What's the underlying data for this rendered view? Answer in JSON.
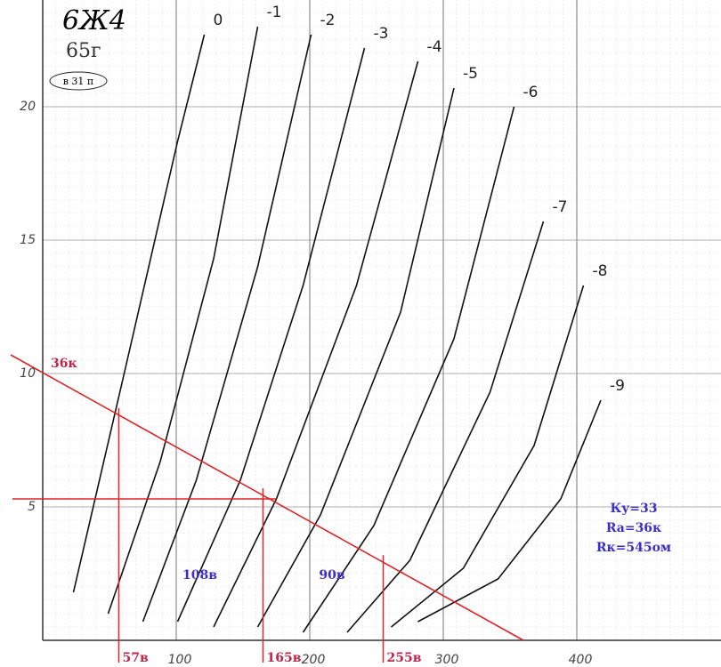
{
  "chart_data": {
    "type": "line",
    "title": "6Ж4",
    "subtitle": "65г",
    "badge": "в 31 п",
    "xlim": [
      -32,
      508
    ],
    "ylim": [
      -1,
      24
    ],
    "xticks": [
      100,
      200,
      300,
      400
    ],
    "yticks": [
      5,
      10,
      15,
      20
    ],
    "grid": true,
    "series": [
      {
        "name": "0",
        "color": "#111111",
        "x": [
          23,
          61,
          101,
          121
        ],
        "values": [
          1.8,
          10,
          18.7,
          22.7
        ]
      },
      {
        "name": "-1",
        "color": "#111111",
        "x": [
          49,
          88,
          128,
          161
        ],
        "values": [
          1,
          6.7,
          14.3,
          23
        ]
      },
      {
        "name": "-2",
        "color": "#111111",
        "x": [
          75,
          115,
          161,
          201
        ],
        "values": [
          0.7,
          6,
          14,
          22.7
        ]
      },
      {
        "name": "-3",
        "color": "#111111",
        "x": [
          101,
          148,
          195,
          241
        ],
        "values": [
          0.7,
          6,
          13.3,
          22.2
        ]
      },
      {
        "name": "-4",
        "color": "#111111",
        "x": [
          128,
          175,
          235,
          281
        ],
        "values": [
          0.5,
          5.3,
          13.3,
          21.7
        ]
      },
      {
        "name": "-5",
        "color": "#111111",
        "x": [
          161,
          208,
          268,
          308
        ],
        "values": [
          0.5,
          4.7,
          12.3,
          20.7
        ]
      },
      {
        "name": "-6",
        "color": "#111111",
        "x": [
          195,
          248,
          308,
          353
        ],
        "values": [
          0.3,
          4.3,
          11.3,
          20
        ]
      },
      {
        "name": "-7",
        "color": "#111111",
        "x": [
          228,
          275,
          335,
          375
        ],
        "values": [
          0.3,
          3,
          9.3,
          15.7
        ]
      },
      {
        "name": "-8",
        "color": "#111111",
        "x": [
          261,
          315,
          368,
          405
        ],
        "values": [
          0.5,
          2.7,
          7.3,
          13.3
        ]
      },
      {
        "name": "-9",
        "color": "#111111",
        "x": [
          281,
          341,
          388,
          418
        ],
        "values": [
          0.7,
          2.3,
          5.3,
          9
        ]
      }
    ],
    "load_line": {
      "name": "36к",
      "color": "#d9262b",
      "x": [
        -24,
        360
      ],
      "values": [
        10.7,
        0
      ]
    },
    "operating_current": 5.3,
    "markers": [
      {
        "value": 57,
        "label": "57в"
      },
      {
        "value": 165,
        "label": "165в"
      },
      {
        "value": 255,
        "label": "255в"
      }
    ],
    "swings": [
      "108в",
      "90в"
    ],
    "notes": [
      "Ку=33",
      "Ra=36к",
      "Rк=545ом"
    ]
  }
}
